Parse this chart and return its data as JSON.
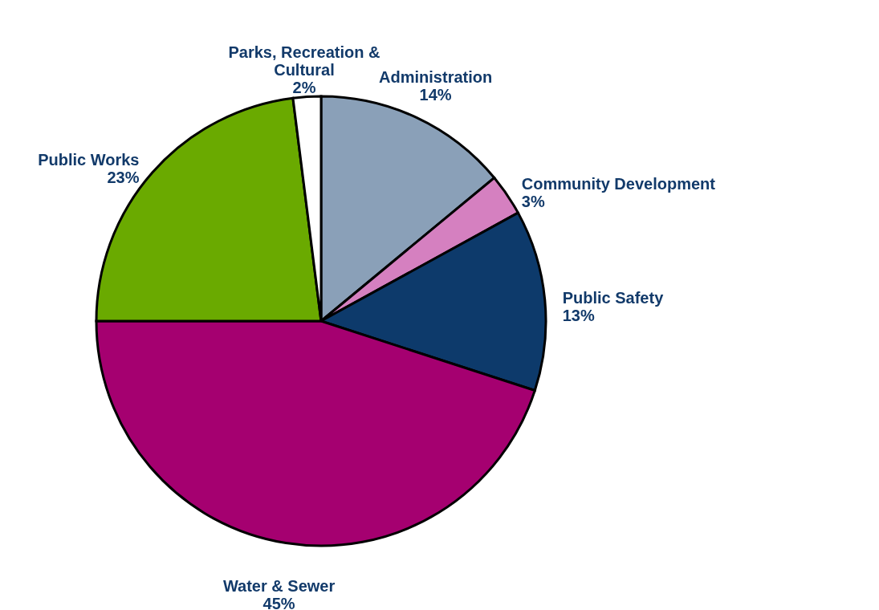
{
  "chart_data": {
    "type": "pie",
    "categories": [
      "Administration",
      "Community Development",
      "Public Safety",
      "Water & Sewer",
      "Public Works",
      "Parks, Recreation & Cultural"
    ],
    "values": [
      14,
      3,
      13,
      45,
      23,
      2
    ],
    "value_labels": [
      "14%",
      "3%",
      "13%",
      "45%",
      "23%",
      "2%"
    ],
    "colors": [
      "#8aa0b8",
      "#d580c0",
      "#0d3a6b",
      "#a50070",
      "#6aaa00",
      "#ffffff"
    ]
  }
}
